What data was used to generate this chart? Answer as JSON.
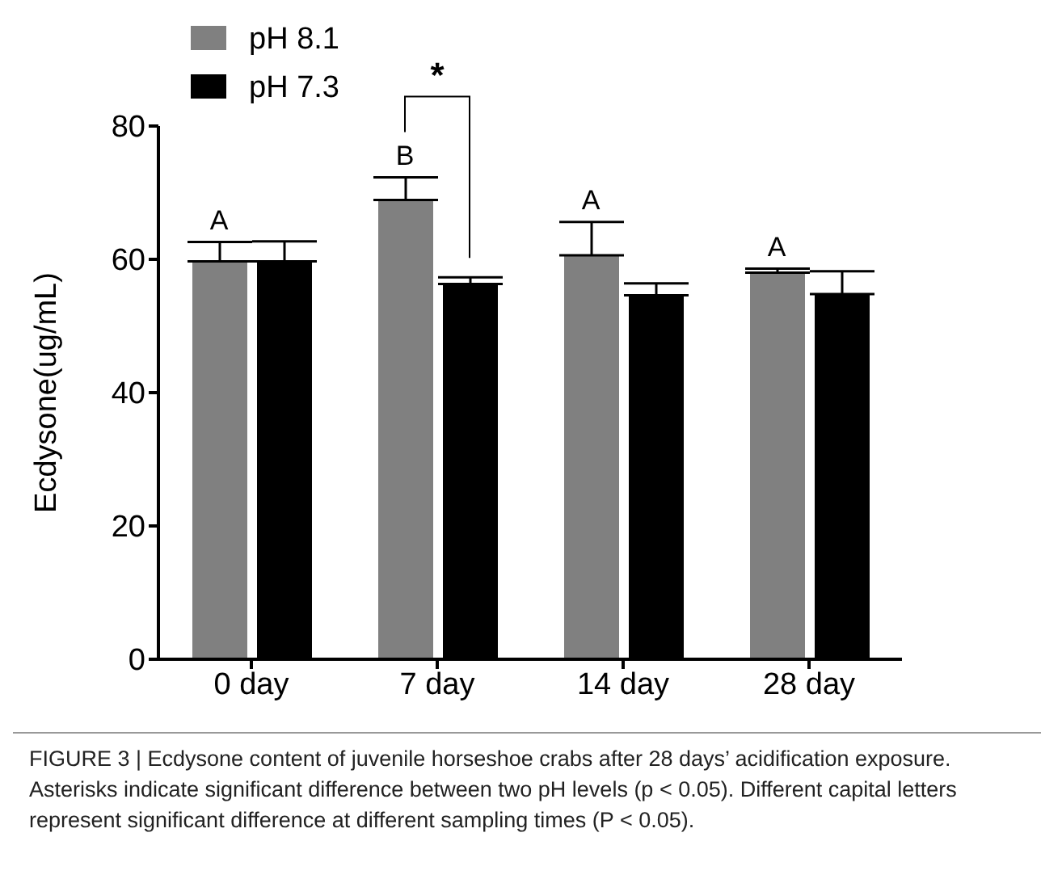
{
  "chart_data": {
    "type": "bar",
    "ylabel": "Ecdysone(ug/mL)",
    "categories": [
      "0 day",
      "7 day",
      "14 day",
      "28 day"
    ],
    "series": [
      {
        "name": "pH 8.1",
        "color": "#808080",
        "values": [
          59.7,
          68.9,
          60.6,
          58.0
        ],
        "errors": [
          [
            59.7,
            62.6
          ],
          [
            68.9,
            72.3
          ],
          [
            60.6,
            65.6
          ],
          [
            58.0,
            58.6
          ]
        ]
      },
      {
        "name": "pH 7.3",
        "color": "#000000",
        "values": [
          59.7,
          56.3,
          54.6,
          54.8
        ],
        "errors": [
          [
            59.7,
            62.7
          ],
          [
            56.3,
            57.3
          ],
          [
            54.6,
            56.4
          ],
          [
            54.8,
            58.2
          ]
        ]
      }
    ],
    "ylim": [
      0,
      80
    ],
    "yticks": [
      0,
      20,
      40,
      60,
      80
    ],
    "grid": false,
    "legend": "top left",
    "annotations": [
      {
        "text": "A",
        "x": "0 day",
        "y": 62.6
      },
      {
        "text": "B",
        "x": "7 day",
        "y": 72.3
      },
      {
        "text": "A",
        "x": "14 day",
        "y": 65.6
      },
      {
        "text": "A",
        "x": "28 day",
        "y": 58.6
      },
      "*",
      "FIGURE 3 | Ecdysone content of juvenile horseshoe crabs after 28 days’ acidification exposure. Asterisks indicate significant difference between two pH levels (p < 0.05). Different capital letters represent significant difference at different sampling times (P < 0.05)."
    ]
  }
}
